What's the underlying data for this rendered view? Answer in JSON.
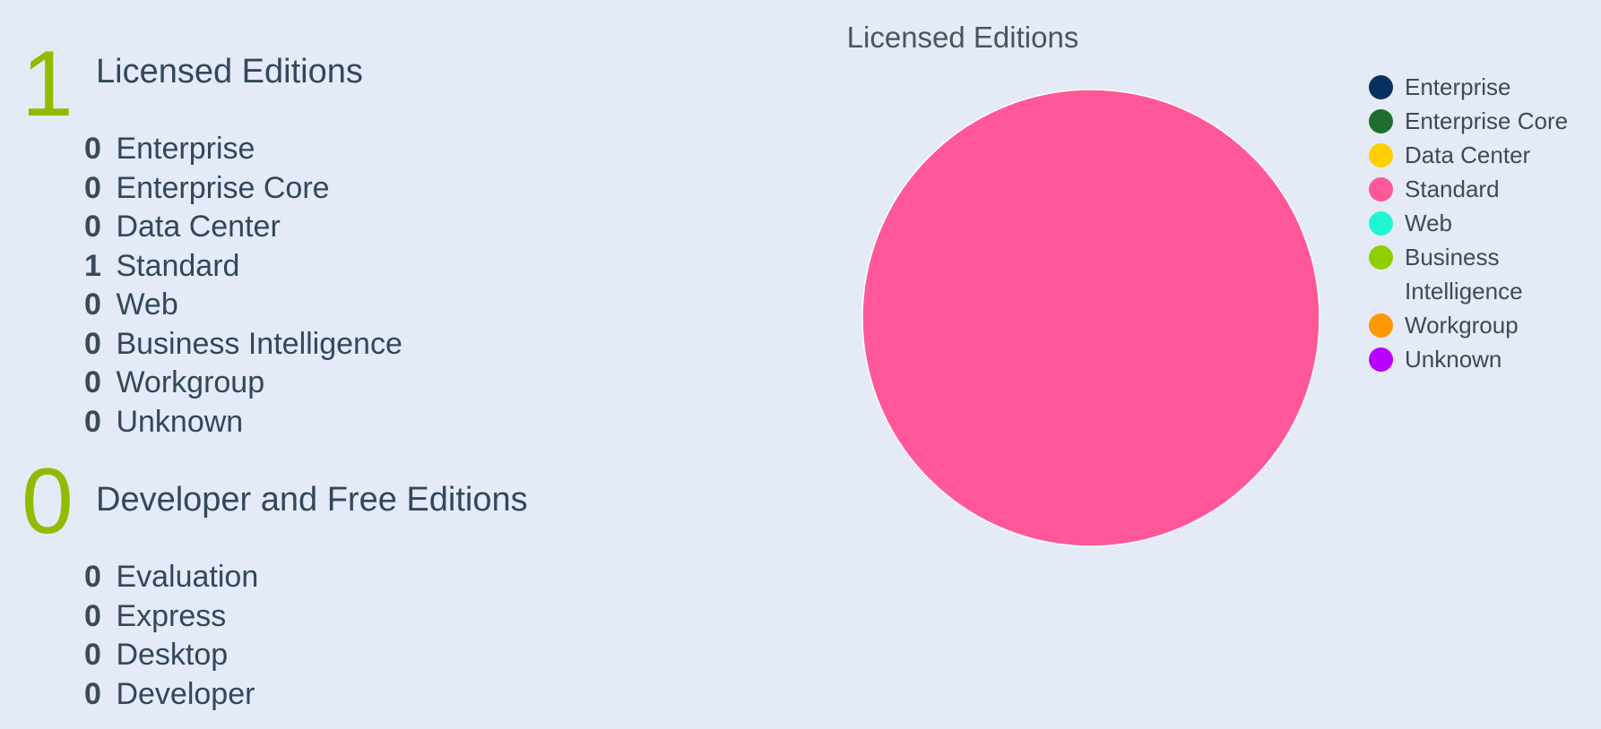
{
  "licensed": {
    "total": "1",
    "title": "Licensed Editions",
    "items": [
      {
        "count": "0",
        "label": "Enterprise"
      },
      {
        "count": "0",
        "label": "Enterprise Core"
      },
      {
        "count": "0",
        "label": "Data Center"
      },
      {
        "count": "1",
        "label": "Standard"
      },
      {
        "count": "0",
        "label": "Web"
      },
      {
        "count": "0",
        "label": "Business Intelligence"
      },
      {
        "count": "0",
        "label": "Workgroup"
      },
      {
        "count": "0",
        "label": "Unknown"
      }
    ]
  },
  "free": {
    "total": "0",
    "title": "Developer and Free Editions",
    "items": [
      {
        "count": "0",
        "label": "Evaluation"
      },
      {
        "count": "0",
        "label": "Express"
      },
      {
        "count": "0",
        "label": "Desktop"
      },
      {
        "count": "0",
        "label": "Developer"
      }
    ]
  },
  "chart_data": {
    "type": "pie",
    "title": "Licensed Editions",
    "categories": [
      "Enterprise",
      "Enterprise Core",
      "Data Center",
      "Standard",
      "Web",
      "Business Intelligence",
      "Workgroup",
      "Unknown"
    ],
    "values": [
      0,
      0,
      0,
      1,
      0,
      0,
      0,
      0
    ],
    "colors": [
      "#05305f",
      "#1e6f2f",
      "#ffd000",
      "#ff5797",
      "#1ff7d3",
      "#8fcf00",
      "#ff9806",
      "#b800ff"
    ],
    "legend": "right"
  }
}
